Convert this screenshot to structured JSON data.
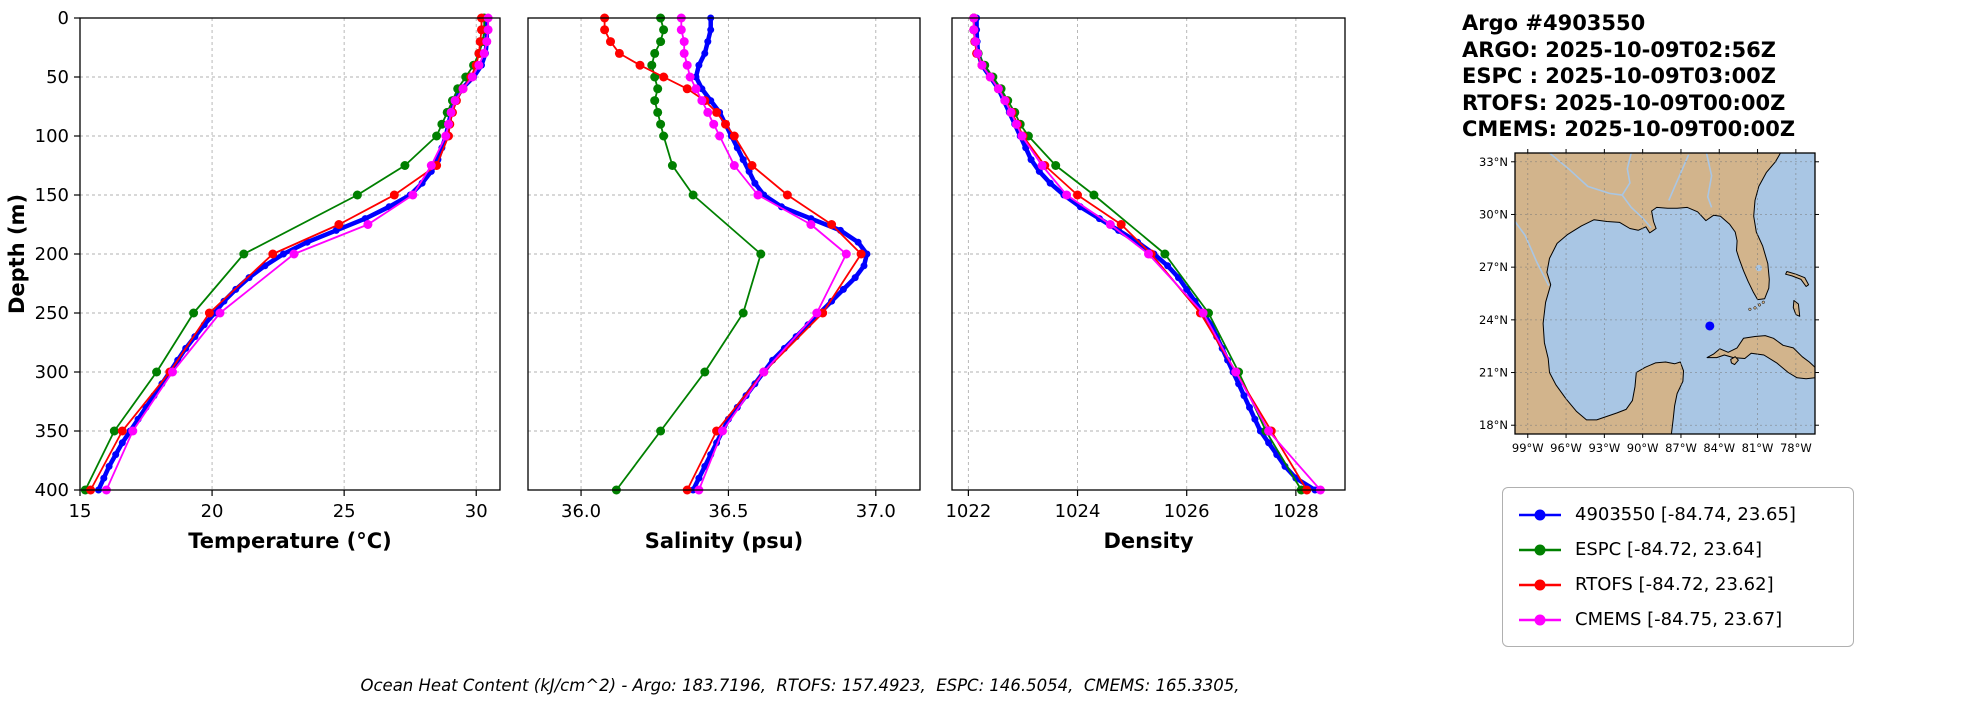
{
  "header": {
    "title": "Argo #4903550",
    "lines": [
      "ARGO: 2025-10-09T02:56Z",
      "ESPC : 2025-10-09T03:00Z",
      "RTOFS: 2025-10-09T00:00Z",
      "CMEMS: 2025-10-09T00:00Z"
    ]
  },
  "caption": "Ocean Heat Content (kJ/cm^2) - Argo: 183.7196,  RTOFS: 157.4923,  ESPC: 146.5054,  CMEMS: 165.3305,",
  "chart_data": [
    {
      "type": "line",
      "xlabel": "Temperature (°C)",
      "ylabel": "Depth (m)",
      "xlim": [
        15,
        30.9
      ],
      "ylim": [
        0,
        400
      ],
      "y_inverted": true,
      "grid": true,
      "xticks": [
        15,
        20,
        25,
        30
      ],
      "xtick_labels": [
        "15",
        "20",
        "25",
        "30"
      ],
      "yticks": [
        0,
        50,
        100,
        150,
        200,
        250,
        300,
        350,
        400
      ],
      "series": [
        {
          "name": "4903550",
          "color": "#0000ff",
          "lw": 4.5,
          "marker_r": 3.5,
          "depths": [
            0,
            10,
            20,
            30,
            40,
            50,
            60,
            70,
            80,
            90,
            100,
            110,
            120,
            130,
            140,
            150,
            160,
            170,
            180,
            190,
            200,
            210,
            220,
            230,
            240,
            250,
            260,
            270,
            280,
            290,
            300,
            310,
            320,
            330,
            340,
            350,
            360,
            370,
            380,
            390,
            400
          ],
          "values": [
            30.4,
            30.4,
            30.4,
            30.35,
            30.2,
            29.9,
            29.45,
            29.2,
            29.05,
            28.95,
            28.85,
            28.7,
            28.55,
            28.3,
            27.95,
            27.5,
            26.7,
            25.8,
            24.7,
            23.6,
            22.7,
            22.0,
            21.4,
            20.9,
            20.45,
            20.1,
            19.7,
            19.35,
            19.0,
            18.7,
            18.4,
            18.1,
            17.8,
            17.5,
            17.2,
            16.9,
            16.6,
            16.35,
            16.1,
            15.9,
            15.7
          ]
        },
        {
          "name": "ESPC",
          "color": "#008000",
          "lw": 1.8,
          "marker_r": 4.5,
          "depths": [
            0,
            10,
            20,
            30,
            40,
            50,
            60,
            70,
            80,
            90,
            100,
            125,
            150,
            200,
            250,
            300,
            350,
            400
          ],
          "values": [
            30.3,
            30.3,
            30.25,
            30.1,
            29.9,
            29.6,
            29.3,
            29.1,
            28.9,
            28.7,
            28.5,
            27.3,
            25.5,
            21.2,
            19.3,
            17.9,
            16.3,
            15.2
          ]
        },
        {
          "name": "RTOFS",
          "color": "#ff0000",
          "lw": 1.8,
          "marker_r": 4.5,
          "depths": [
            0,
            10,
            20,
            30,
            40,
            50,
            60,
            70,
            80,
            90,
            100,
            125,
            150,
            175,
            200,
            250,
            300,
            350,
            400
          ],
          "values": [
            30.2,
            30.2,
            30.15,
            30.1,
            30.0,
            29.8,
            29.5,
            29.25,
            29.1,
            29.0,
            28.95,
            28.5,
            26.9,
            24.8,
            22.3,
            19.9,
            18.4,
            16.6,
            15.4
          ]
        },
        {
          "name": "CMEMS",
          "color": "#ff00ff",
          "lw": 1.8,
          "marker_r": 4.5,
          "depths": [
            0,
            10,
            20,
            30,
            40,
            50,
            60,
            70,
            80,
            90,
            100,
            125,
            150,
            175,
            200,
            250,
            300,
            350,
            400
          ],
          "values": [
            30.45,
            30.45,
            30.4,
            30.3,
            30.1,
            29.85,
            29.5,
            29.2,
            29.05,
            28.95,
            28.85,
            28.3,
            27.6,
            25.9,
            23.1,
            20.3,
            18.5,
            17.0,
            16.0
          ]
        }
      ]
    },
    {
      "type": "line",
      "xlabel": "Salinity (psu)",
      "ylabel": "",
      "xlim": [
        35.82,
        37.15
      ],
      "ylim": [
        0,
        400
      ],
      "y_inverted": true,
      "grid": true,
      "xticks": [
        36.0,
        36.5,
        37.0
      ],
      "xtick_labels": [
        "36.0",
        "36.5",
        "37.0"
      ],
      "yticks": [
        0,
        50,
        100,
        150,
        200,
        250,
        300,
        350,
        400
      ],
      "series": [
        {
          "name": "4903550",
          "color": "#0000ff",
          "lw": 4.5,
          "marker_r": 3.5,
          "depths": [
            0,
            10,
            20,
            30,
            40,
            50,
            60,
            70,
            80,
            90,
            100,
            110,
            120,
            130,
            140,
            150,
            160,
            170,
            180,
            190,
            200,
            210,
            220,
            230,
            240,
            250,
            260,
            270,
            280,
            290,
            300,
            310,
            320,
            330,
            340,
            350,
            360,
            370,
            380,
            390,
            400
          ],
          "values": [
            36.44,
            36.44,
            36.43,
            36.42,
            36.4,
            36.39,
            36.41,
            36.44,
            36.47,
            36.49,
            36.51,
            36.53,
            36.55,
            36.57,
            36.59,
            36.62,
            36.68,
            36.78,
            36.88,
            36.94,
            36.97,
            36.96,
            36.93,
            36.89,
            36.85,
            36.81,
            36.77,
            36.73,
            36.69,
            36.65,
            36.62,
            36.59,
            36.56,
            36.53,
            36.5,
            36.48,
            36.46,
            36.44,
            36.42,
            36.4,
            36.38
          ]
        },
        {
          "name": "ESPC",
          "color": "#008000",
          "lw": 1.8,
          "marker_r": 4.5,
          "depths": [
            0,
            10,
            20,
            30,
            40,
            50,
            60,
            70,
            80,
            90,
            100,
            125,
            150,
            200,
            250,
            300,
            350,
            400
          ],
          "values": [
            36.27,
            36.28,
            36.27,
            36.25,
            36.24,
            36.25,
            36.26,
            36.25,
            36.26,
            36.27,
            36.28,
            36.31,
            36.38,
            36.61,
            36.55,
            36.42,
            36.27,
            36.12
          ]
        },
        {
          "name": "RTOFS",
          "color": "#ff0000",
          "lw": 1.8,
          "marker_r": 4.5,
          "depths": [
            0,
            10,
            20,
            30,
            40,
            50,
            60,
            70,
            80,
            90,
            100,
            125,
            150,
            175,
            200,
            250,
            300,
            350,
            400
          ],
          "values": [
            36.08,
            36.08,
            36.1,
            36.13,
            36.2,
            36.28,
            36.36,
            36.42,
            36.46,
            36.49,
            36.52,
            36.58,
            36.7,
            36.85,
            36.95,
            36.82,
            36.62,
            36.46,
            36.36
          ]
        },
        {
          "name": "CMEMS",
          "color": "#ff00ff",
          "lw": 1.8,
          "marker_r": 4.5,
          "depths": [
            0,
            10,
            20,
            30,
            40,
            50,
            60,
            70,
            80,
            90,
            100,
            125,
            150,
            175,
            200,
            250,
            300,
            350,
            400
          ],
          "values": [
            36.34,
            36.34,
            36.35,
            36.35,
            36.36,
            36.37,
            36.39,
            36.41,
            36.43,
            36.45,
            36.47,
            36.52,
            36.6,
            36.78,
            36.9,
            36.8,
            36.62,
            36.48,
            36.4
          ]
        }
      ]
    },
    {
      "type": "line",
      "xlabel": "Density",
      "ylabel": "",
      "xlim": [
        1021.7,
        1028.9
      ],
      "ylim": [
        0,
        400
      ],
      "y_inverted": true,
      "grid": true,
      "xticks": [
        1022,
        1024,
        1026,
        1028
      ],
      "xtick_labels": [
        "1022",
        "1024",
        "1026",
        "1028"
      ],
      "yticks": [
        0,
        50,
        100,
        150,
        200,
        250,
        300,
        350,
        400
      ],
      "series": [
        {
          "name": "4903550",
          "color": "#0000ff",
          "lw": 4.5,
          "marker_r": 3.5,
          "depths": [
            0,
            10,
            20,
            30,
            40,
            50,
            60,
            70,
            80,
            90,
            100,
            110,
            120,
            130,
            140,
            150,
            160,
            170,
            180,
            190,
            200,
            210,
            220,
            230,
            240,
            250,
            260,
            270,
            280,
            290,
            300,
            310,
            320,
            330,
            340,
            350,
            360,
            370,
            380,
            390,
            400
          ],
          "values": [
            1022.15,
            1022.15,
            1022.16,
            1022.18,
            1022.25,
            1022.4,
            1022.55,
            1022.65,
            1022.75,
            1022.85,
            1022.95,
            1023.05,
            1023.15,
            1023.3,
            1023.5,
            1023.75,
            1024.05,
            1024.4,
            1024.75,
            1025.1,
            1025.4,
            1025.65,
            1025.85,
            1026.0,
            1026.15,
            1026.3,
            1026.45,
            1026.55,
            1026.65,
            1026.75,
            1026.85,
            1026.95,
            1027.05,
            1027.15,
            1027.25,
            1027.35,
            1027.5,
            1027.65,
            1027.8,
            1028.0,
            1028.35
          ]
        },
        {
          "name": "ESPC",
          "color": "#008000",
          "lw": 1.8,
          "marker_r": 4.5,
          "depths": [
            0,
            10,
            20,
            30,
            40,
            50,
            60,
            70,
            80,
            90,
            100,
            125,
            150,
            200,
            250,
            300,
            350,
            400
          ],
          "values": [
            1022.1,
            1022.1,
            1022.12,
            1022.18,
            1022.3,
            1022.45,
            1022.6,
            1022.72,
            1022.85,
            1022.95,
            1023.1,
            1023.6,
            1024.3,
            1025.6,
            1026.4,
            1026.95,
            1027.45,
            1028.1
          ]
        },
        {
          "name": "RTOFS",
          "color": "#ff0000",
          "lw": 1.8,
          "marker_r": 4.5,
          "depths": [
            0,
            10,
            20,
            30,
            40,
            50,
            60,
            70,
            80,
            90,
            100,
            125,
            150,
            175,
            200,
            250,
            300,
            350,
            400
          ],
          "values": [
            1022.1,
            1022.1,
            1022.12,
            1022.15,
            1022.25,
            1022.4,
            1022.55,
            1022.68,
            1022.8,
            1022.9,
            1023.0,
            1023.4,
            1024.0,
            1024.8,
            1025.35,
            1026.25,
            1026.9,
            1027.55,
            1028.2
          ]
        },
        {
          "name": "CMEMS",
          "color": "#ff00ff",
          "lw": 1.8,
          "marker_r": 4.5,
          "depths": [
            0,
            10,
            20,
            30,
            40,
            50,
            60,
            70,
            80,
            90,
            100,
            125,
            150,
            175,
            200,
            250,
            300,
            350,
            400
          ],
          "values": [
            1022.1,
            1022.1,
            1022.13,
            1022.17,
            1022.25,
            1022.4,
            1022.55,
            1022.67,
            1022.78,
            1022.88,
            1022.98,
            1023.35,
            1023.8,
            1024.6,
            1025.3,
            1026.3,
            1026.9,
            1027.5,
            1028.45
          ]
        }
      ]
    }
  ],
  "map": {
    "extent": {
      "lon": [
        -100,
        -76.5
      ],
      "lat": [
        17.5,
        33.5
      ]
    },
    "lon_tick_values": [
      -99,
      -96,
      -93,
      -90,
      -87,
      -84,
      -81,
      -78
    ],
    "lon_tick_labels": [
      "99°W",
      "96°W",
      "93°W",
      "90°W",
      "87°W",
      "84°W",
      "81°W",
      "78°W"
    ],
    "lat_tick_values": [
      33,
      30,
      27,
      24,
      21,
      18
    ],
    "lat_tick_labels": [
      "33°N",
      "30°N",
      "27°N",
      "24°N",
      "21°N",
      "18°N"
    ],
    "marker": {
      "lon": -84.74,
      "lat": 23.65,
      "color": "#0000ff"
    },
    "land_color": "#d2b48c",
    "water_color": "#a9c6e4"
  },
  "legend": {
    "items": [
      {
        "name": "4903550",
        "color": "#0000ff",
        "label": "4903550 [-84.74, 23.65]"
      },
      {
        "name": "ESPC",
        "color": "#008000",
        "label": "ESPC [-84.72, 23.64]"
      },
      {
        "name": "RTOFS",
        "color": "#ff0000",
        "label": "RTOFS [-84.72, 23.62]"
      },
      {
        "name": "CMEMS",
        "color": "#ff00ff",
        "label": "CMEMS [-84.75, 23.67]"
      }
    ]
  }
}
